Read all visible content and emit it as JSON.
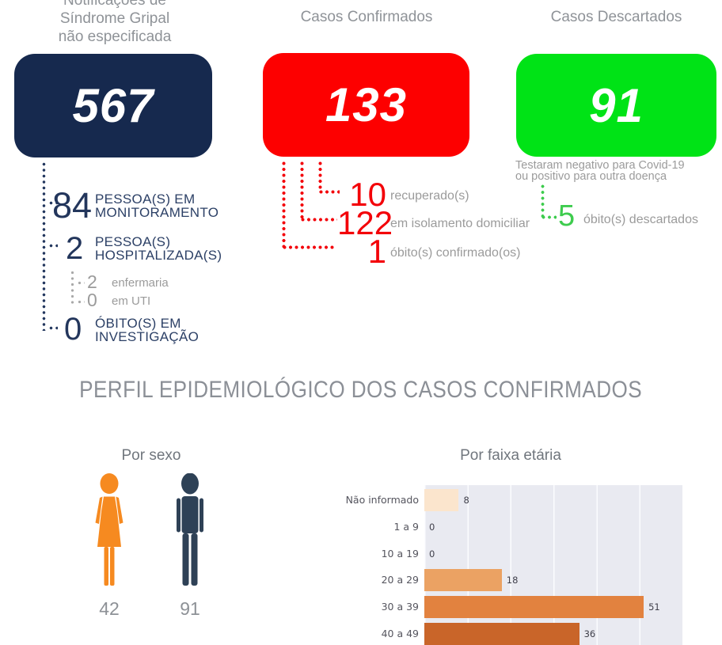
{
  "header": {
    "notifications_title_lines": [
      "Notificações de",
      "Síndrome Gripal",
      "não especificada"
    ],
    "confirmed_title": "Casos Confirmados",
    "discarded_title": "Casos Descartados"
  },
  "cards": {
    "notifications": {
      "value": "567",
      "color": "#16294e"
    },
    "confirmed": {
      "value": "133",
      "color": "#fd0000"
    },
    "discarded": {
      "value": "91",
      "color": "#00e316",
      "caption_line1": "Testaram negativo para Covid-19",
      "caption_line2": "ou positivo para outra doença"
    }
  },
  "monitoring": {
    "item1": {
      "value": "84",
      "label_line1": "PESSOA(S) EM",
      "label_line2": "MONITORAMENTO"
    },
    "item2": {
      "value": "2",
      "label_line1": "PESSOA(S)",
      "label_line2": "HOSPITALIZADA(S)"
    },
    "sub1": {
      "value": "2",
      "label": "enfermaria"
    },
    "sub2": {
      "value": "0",
      "label": "em UTI"
    },
    "item3": {
      "value": "0",
      "label_line1": "ÓBITO(S) EM",
      "label_line2": "INVESTIGAÇÃO"
    }
  },
  "confirmed_details": {
    "recovered": {
      "value": "10",
      "label": "recuperado(s)"
    },
    "isolation": {
      "value": "122",
      "label": "em isolamento domiciliar"
    },
    "deaths": {
      "value": "1",
      "label": "óbito(s) confirmado(os)"
    }
  },
  "discarded_details": {
    "deaths": {
      "value": "5",
      "label": "óbito(s) descartados",
      "accent": "#3ecc4e"
    }
  },
  "section_title": "PERFIL EPIDEMIOLÓGICO DOS CASOS CONFIRMADOS",
  "by_sex": {
    "title": "Por sexo",
    "female": {
      "value": "42",
      "color": "#f68a20"
    },
    "male": {
      "value": "91",
      "color": "#2e4156"
    }
  },
  "chart_data": {
    "type": "bar",
    "orientation": "horizontal",
    "title": "Por faixa etária",
    "categories": [
      "Não informado",
      "1 a 9",
      "10 a 19",
      "20 a 29",
      "30 a 39",
      "40 a 49"
    ],
    "values": [
      8,
      0,
      0,
      18,
      51,
      36
    ],
    "bar_colors": [
      "#fbe5cd",
      "#f5cfae",
      "#f0b988",
      "#eba263",
      "#e2823f",
      "#c96529"
    ],
    "xlabel": "",
    "ylabel": "",
    "xlim": [
      0,
      60
    ],
    "gridline_step": 10,
    "grid": true,
    "legend": false,
    "plot_bg": "#e9eaf1",
    "value_labels": true
  }
}
